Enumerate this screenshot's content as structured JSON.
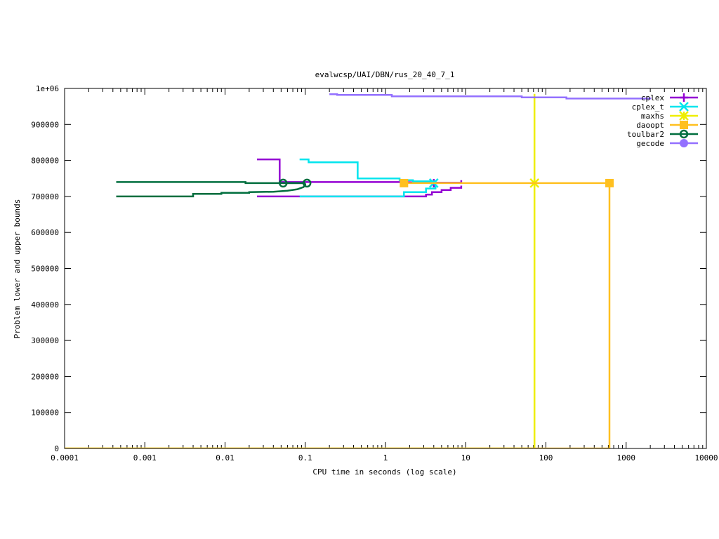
{
  "chart_data": {
    "type": "line",
    "title": "evalwcsp/UAI/DBN/rus_20_40_7_1",
    "xlabel": "CPU time in seconds (log scale)",
    "ylabel": "Problem lower and upper bounds",
    "x_scale": "log",
    "xlim": [
      0.0001,
      10000
    ],
    "ylim": [
      0,
      1000000
    ],
    "x_ticks": [
      {
        "value": 0.0001,
        "label": "0.0001"
      },
      {
        "value": 0.001,
        "label": "0.001"
      },
      {
        "value": 0.01,
        "label": "0.01"
      },
      {
        "value": 0.1,
        "label": "0.1"
      },
      {
        "value": 1,
        "label": "1"
      },
      {
        "value": 10,
        "label": "10"
      },
      {
        "value": 100,
        "label": "100"
      },
      {
        "value": 1000,
        "label": "1000"
      },
      {
        "value": 10000,
        "label": "10000"
      }
    ],
    "y_ticks": [
      {
        "value": 0,
        "label": "0"
      },
      {
        "value": 100000,
        "label": "100000"
      },
      {
        "value": 200000,
        "label": "200000"
      },
      {
        "value": 300000,
        "label": "300000"
      },
      {
        "value": 400000,
        "label": "400000"
      },
      {
        "value": 500000,
        "label": "500000"
      },
      {
        "value": 600000,
        "label": "600000"
      },
      {
        "value": 700000,
        "label": "700000"
      },
      {
        "value": 800000,
        "label": "800000"
      },
      {
        "value": 900000,
        "label": "900000"
      },
      {
        "value": 1000000,
        "label": "1e+06"
      }
    ],
    "grid": false,
    "legend_position": "top-right",
    "series": [
      {
        "name": "cplex",
        "color": "#9400d3",
        "marker": "plus",
        "lines": [
          [
            [
              0.025,
              803000
            ],
            [
              0.048,
              803000
            ],
            [
              0.048,
              740000
            ],
            [
              1.5,
              740000
            ],
            [
              4.2,
              738000
            ],
            [
              8.8,
              738000
            ],
            [
              8.8,
              745000
            ]
          ],
          [
            [
              0.025,
              700000
            ],
            [
              0.085,
              700000
            ],
            [
              0.085,
              700000
            ],
            [
              1.7,
              700000
            ],
            [
              1.7,
              700000
            ],
            [
              3.2,
              700000
            ],
            [
              3.2,
              705000
            ],
            [
              3.8,
              705000
            ],
            [
              3.8,
              712000
            ],
            [
              5,
              712000
            ],
            [
              5,
              718000
            ],
            [
              6.5,
              718000
            ],
            [
              6.5,
              724000
            ],
            [
              8.8,
              724000
            ],
            [
              8.8,
              730000
            ]
          ]
        ],
        "markers": [
          [
            4.0,
            737000
          ]
        ]
      },
      {
        "name": "cplex_t",
        "color": "#00e5ee",
        "marker": "cross",
        "lines": [
          [
            [
              0.085,
              803000
            ],
            [
              0.11,
              803000
            ],
            [
              0.11,
              795000
            ],
            [
              0.45,
              795000
            ],
            [
              0.45,
              750000
            ],
            [
              1.5,
              750000
            ],
            [
              1.5,
              745000
            ],
            [
              2.2,
              745000
            ],
            [
              2.2,
              742000
            ],
            [
              4.2,
              742000
            ],
            [
              4.2,
              738000
            ]
          ],
          [
            [
              0.085,
              700000
            ],
            [
              1.7,
              700000
            ],
            [
              1.7,
              712000
            ],
            [
              3.2,
              712000
            ],
            [
              3.2,
              722000
            ],
            [
              4.2,
              722000
            ],
            [
              4.2,
              730000
            ]
          ]
        ],
        "markers": [
          [
            4.0,
            737000
          ]
        ]
      },
      {
        "name": "maxhs",
        "color": "#eeee00",
        "marker": "star",
        "lines": [
          [
            [
              72,
              985000
            ],
            [
              72,
              0
            ]
          ],
          [
            [
              0.0001,
              0
            ],
            [
              72,
              0
            ]
          ]
        ],
        "markers": [
          [
            72,
            737000
          ]
        ]
      },
      {
        "name": "daoopt",
        "color": "#ffc020",
        "marker": "square",
        "lines": [
          [
            [
              1.7,
              737000
            ],
            [
              620,
              737000
            ],
            [
              620,
              0
            ]
          ],
          [
            [
              0.0001,
              0
            ],
            [
              620,
              0
            ]
          ]
        ],
        "markers": [
          [
            1.7,
            737000
          ],
          [
            620,
            737000
          ]
        ]
      },
      {
        "name": "toulbar2",
        "color": "#006e3e",
        "marker": "circle",
        "lines": [
          [
            [
              0.00044,
              740000
            ],
            [
              0.018,
              740000
            ],
            [
              0.018,
              737000
            ],
            [
              0.1,
              737000
            ]
          ],
          [
            [
              0.00044,
              700000
            ],
            [
              0.004,
              700000
            ],
            [
              0.004,
              707000
            ],
            [
              0.009,
              707000
            ],
            [
              0.009,
              710000
            ],
            [
              0.02,
              710000
            ],
            [
              0.02,
              712000
            ],
            [
              0.04,
              713000
            ],
            [
              0.06,
              716000
            ],
            [
              0.08,
              720000
            ],
            [
              0.095,
              726000
            ],
            [
              0.1,
              732000
            ],
            [
              0.1,
              736000
            ]
          ],
          [
            [
              0.053,
              737000
            ],
            [
              0.1,
              737000
            ]
          ]
        ],
        "markers": [
          [
            0.053,
            737000
          ],
          [
            0.105,
            737000
          ]
        ]
      },
      {
        "name": "gecode",
        "color": "#9370ff",
        "marker": "filled-circle",
        "lines": [
          [
            [
              0.2,
              984000
            ],
            [
              0.25,
              984000
            ],
            [
              0.25,
              982000
            ],
            [
              1.2,
              982000
            ],
            [
              1.2,
              978000
            ],
            [
              50,
              978000
            ],
            [
              50,
              975000
            ],
            [
              180,
              975000
            ],
            [
              180,
              972000
            ],
            [
              2000,
              972000
            ],
            [
              2000,
              970000
            ]
          ]
        ],
        "markers": []
      }
    ]
  }
}
